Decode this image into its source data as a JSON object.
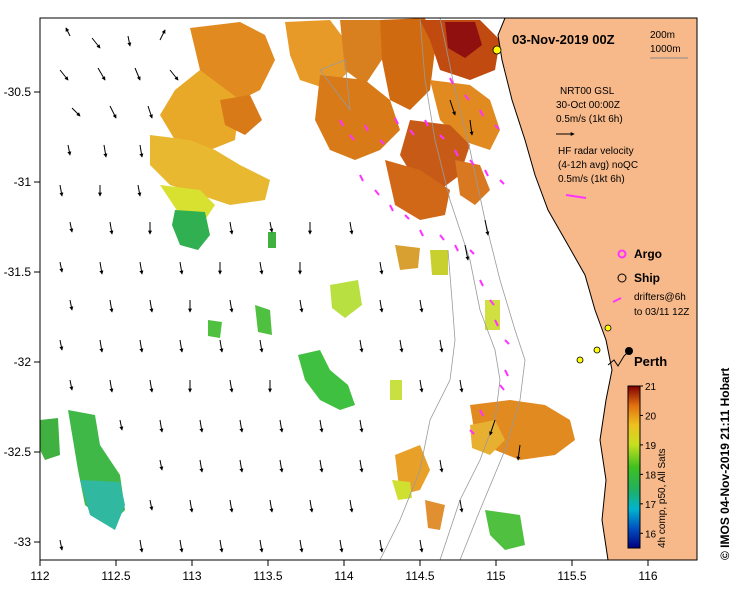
{
  "title": "03-Nov-2019 00Z",
  "depth_legend": {
    "contour_1": "200m",
    "contour_2": "1000m"
  },
  "nrt_legend": {
    "line1": "NRT00 GSL",
    "line2": "30-Oct 00:00Z",
    "line3": "0.5m/s (1kt 6h)"
  },
  "hf_legend": {
    "line1": "HF radar velocity",
    "line2": "(4-12h avg) noQC",
    "line3": "0.5m/s (1kt 6h)"
  },
  "symbols": {
    "argo": "Argo",
    "ship": "Ship",
    "drifters_line1": "drifters@6h",
    "drifters_line2": "to 03/11 12Z"
  },
  "place": {
    "perth": "Perth"
  },
  "colorbar": {
    "label": "4h comp, p50, All Sats",
    "ticks": [
      "21",
      "20",
      "19",
      "18",
      "17",
      "16"
    ],
    "range": [
      15.5,
      21
    ]
  },
  "credit": "© IMOS 04-Nov-2019 21:11 Hobart",
  "axes": {
    "x_ticks": [
      "112",
      "112.5",
      "113",
      "113.5",
      "114",
      "114.5",
      "115",
      "115.5",
      "116"
    ],
    "y_ticks": [
      "-30.5",
      "-31",
      "-31.5",
      "-32",
      "-32.5",
      "-33"
    ]
  },
  "colors": {
    "land": "#f7b98a",
    "drifter": "#ff33ff",
    "frame": "#000000"
  }
}
